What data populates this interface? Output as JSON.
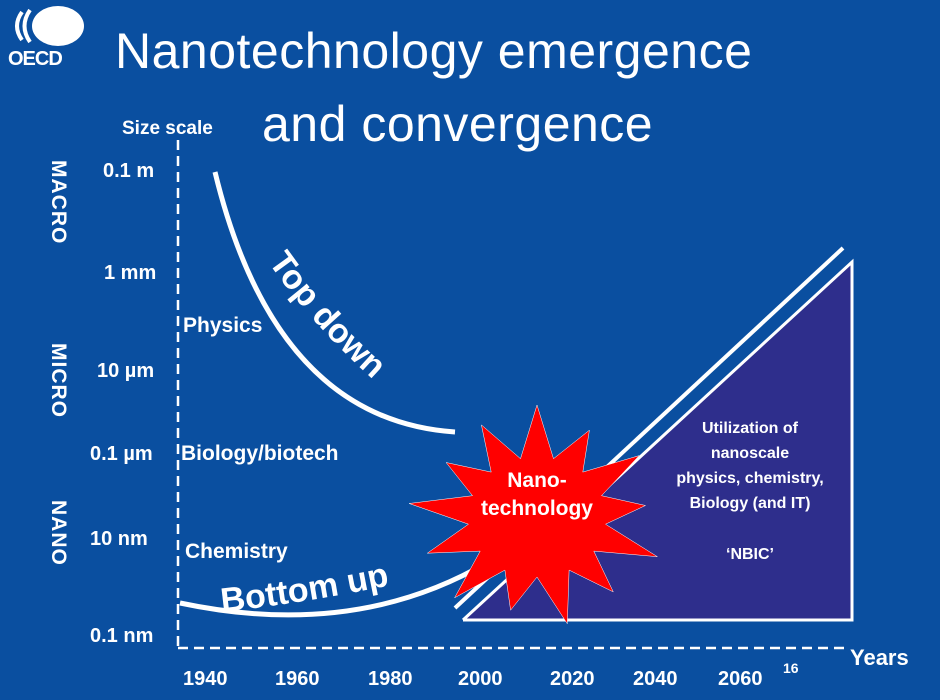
{
  "logo": {
    "text": "OECD"
  },
  "title": {
    "line1": "Nanotechnology emergence",
    "line2": "and convergence"
  },
  "y_axis": {
    "title": "Size scale",
    "ticks": [
      "0.1 m",
      "1 mm",
      "10 µm",
      "0.1 µm",
      "10 nm",
      "0.1 nm"
    ],
    "regions": [
      "MACRO",
      "MICRO",
      "NANO"
    ]
  },
  "x_axis": {
    "title": "Years",
    "ticks": [
      "1940",
      "1960",
      "1980",
      "2000",
      "2020",
      "2040",
      "2060"
    ]
  },
  "fields": [
    "Physics",
    "Biology/biotech",
    "Chemistry"
  ],
  "curves": {
    "top_down": "Top down",
    "bottom_up": "Bottom up"
  },
  "burst": {
    "label": "Nano-\ntechnology",
    "color": "#ff0000"
  },
  "triangle": {
    "color": "#2e2e8c",
    "text": "Utilization of\nnanoscale\nphysics, chemistry,\nBiology (and IT)",
    "nbic": "‘NBIC’"
  },
  "page_number": "16",
  "colors": {
    "background": "#0a4fa0",
    "foreground": "#ffffff"
  }
}
